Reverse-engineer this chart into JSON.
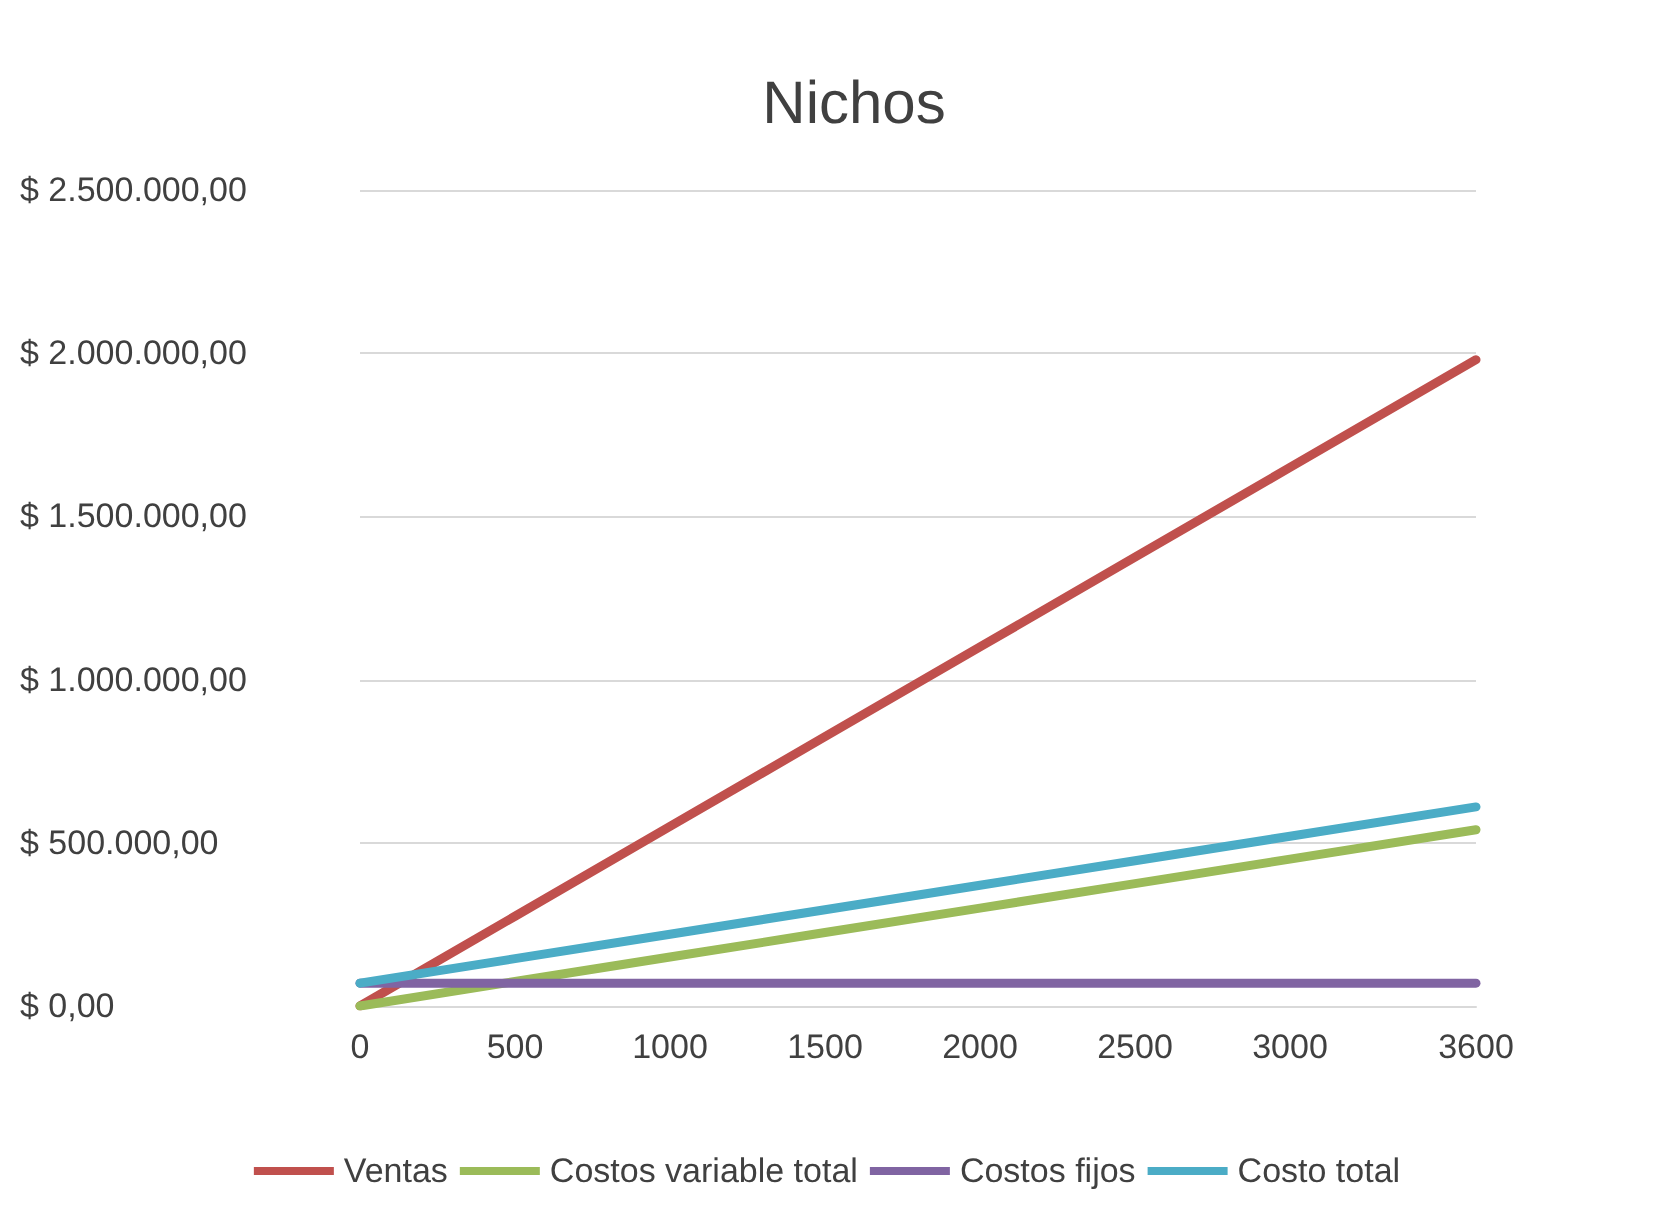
{
  "chart_data": {
    "type": "line",
    "title": "Nichos",
    "x": [
      0,
      500,
      1000,
      1500,
      2000,
      2500,
      3000,
      3600
    ],
    "series": [
      {
        "name": "Ventas",
        "color": "#c0504d",
        "values": [
          0,
          275000,
          550000,
          825000,
          1100000,
          1375000,
          1650000,
          1980000
        ]
      },
      {
        "name": "Costos variable total",
        "color": "#9bbb59",
        "values": [
          0,
          75000,
          150000,
          225000,
          300000,
          375000,
          450000,
          540000
        ]
      },
      {
        "name": "Costos fijos",
        "color": "#8064a2",
        "values": [
          70000,
          70000,
          70000,
          70000,
          70000,
          70000,
          70000,
          70000
        ]
      },
      {
        "name": "Costo total",
        "color": "#4bacc6",
        "values": [
          70000,
          145000,
          220000,
          295000,
          370000,
          445000,
          520000,
          610000
        ]
      }
    ],
    "xlim": [
      0,
      3600
    ],
    "xticks": [
      0,
      500,
      1000,
      1500,
      2000,
      2500,
      3000,
      3600
    ],
    "ylim": [
      0,
      2500000
    ],
    "yticks": [
      {
        "value": 0,
        "label": "$ 0,00"
      },
      {
        "value": 500000,
        "label": "$ 500.000,00"
      },
      {
        "value": 1000000,
        "label": "$ 1.000.000,00"
      },
      {
        "value": 1500000,
        "label": "$ 1.500.000,00"
      },
      {
        "value": 2000000,
        "label": "$ 2.000.000,00"
      },
      {
        "value": 2500000,
        "label": "$ 2.500.000,00"
      }
    ],
    "grid": "y",
    "legend": "bottom",
    "marker": "none",
    "line_style": "solid"
  }
}
